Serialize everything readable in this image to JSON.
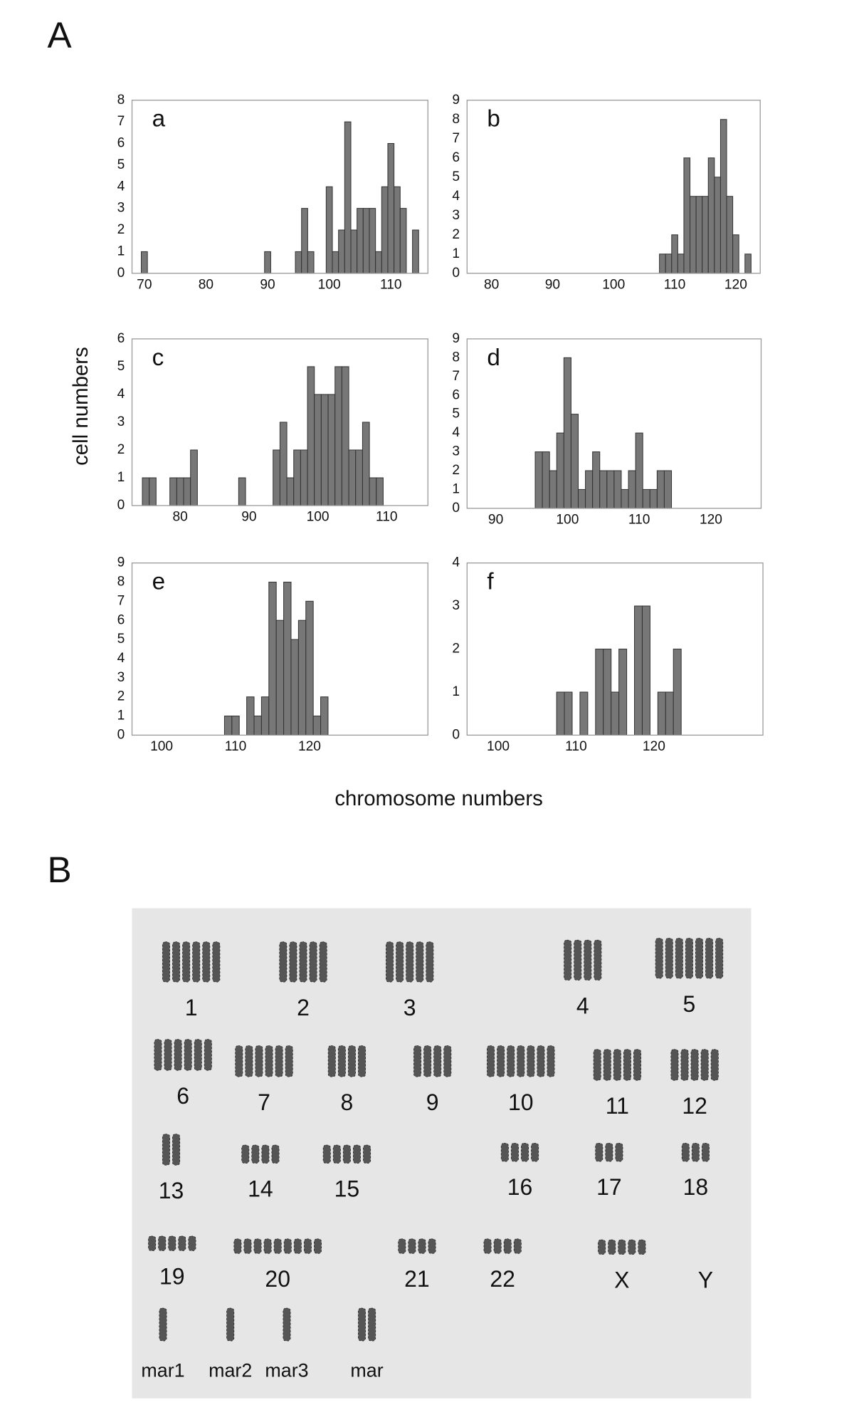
{
  "panel_labels": [
    "A",
    "B"
  ],
  "y_axis_label": "cell numbers",
  "x_axis_label": "chromosome numbers",
  "chart_data": [
    {
      "type": "bar",
      "label": "a",
      "x": [
        70,
        90,
        95,
        96,
        97,
        100,
        101,
        102,
        103,
        104,
        105,
        106,
        107,
        108,
        109,
        110,
        111,
        112,
        114
      ],
      "values": [
        1,
        1,
        1,
        3,
        1,
        4,
        1,
        2,
        7,
        2,
        3,
        3,
        3,
        1,
        4,
        6,
        4,
        3,
        2
      ],
      "color": "#777777",
      "xlim": [
        68,
        116
      ],
      "xticks": [
        70,
        80,
        90,
        100,
        110
      ],
      "ylim": [
        0,
        8
      ],
      "yticks": [
        0,
        1,
        2,
        3,
        4,
        5,
        6,
        7,
        8
      ]
    },
    {
      "type": "bar",
      "label": "b",
      "x": [
        108,
        109,
        110,
        111,
        112,
        113,
        114,
        115,
        116,
        117,
        118,
        119,
        120,
        122
      ],
      "values": [
        1,
        1,
        2,
        1,
        6,
        4,
        4,
        4,
        6,
        5,
        8,
        4,
        2,
        1
      ],
      "color": "#777777",
      "xlim": [
        76,
        124
      ],
      "xticks": [
        80,
        90,
        100,
        110,
        120
      ],
      "ylim": [
        0,
        9
      ],
      "yticks": [
        0,
        1,
        2,
        3,
        4,
        5,
        6,
        7,
        8,
        9
      ]
    },
    {
      "type": "bar",
      "label": "c",
      "x": [
        75,
        76,
        79,
        80,
        81,
        82,
        89,
        94,
        95,
        96,
        97,
        98,
        99,
        100,
        101,
        102,
        103,
        104,
        105,
        106,
        107,
        108,
        109
      ],
      "values": [
        1,
        1,
        1,
        1,
        1,
        2,
        1,
        2,
        3,
        1,
        2,
        2,
        5,
        4,
        4,
        4,
        5,
        5,
        2,
        2,
        3,
        1,
        1
      ],
      "color": "#777777",
      "xlim": [
        73,
        116
      ],
      "xticks": [
        80,
        90,
        100,
        110
      ],
      "ylim": [
        0,
        6
      ],
      "yticks": [
        0,
        1,
        2,
        3,
        4,
        5,
        6
      ]
    },
    {
      "type": "bar",
      "label": "d",
      "x": [
        96,
        97,
        98,
        99,
        100,
        101,
        102,
        103,
        104,
        105,
        106,
        107,
        108,
        109,
        110,
        111,
        112,
        113,
        114
      ],
      "values": [
        3,
        3,
        2,
        4,
        8,
        5,
        1,
        2,
        3,
        2,
        2,
        2,
        1,
        2,
        4,
        1,
        1,
        2,
        2
      ],
      "color": "#777777",
      "xlim": [
        86,
        127
      ],
      "xticks": [
        90,
        100,
        110,
        120
      ],
      "ylim": [
        0,
        9
      ],
      "yticks": [
        0,
        1,
        2,
        3,
        4,
        5,
        6,
        7,
        8,
        9
      ]
    },
    {
      "type": "bar",
      "label": "e",
      "x": [
        109,
        110,
        112,
        113,
        114,
        115,
        116,
        117,
        118,
        119,
        120,
        121,
        122
      ],
      "values": [
        1,
        1,
        2,
        1,
        2,
        8,
        6,
        8,
        5,
        6,
        7,
        1,
        2
      ],
      "color": "#777777",
      "xlim": [
        96,
        136
      ],
      "xticks": [
        100,
        110,
        120
      ],
      "ylim": [
        0,
        9
      ],
      "yticks": [
        0,
        1,
        2,
        3,
        4,
        5,
        6,
        7,
        8,
        9
      ]
    },
    {
      "type": "bar",
      "label": "f",
      "x": [
        108,
        109,
        111,
        113,
        114,
        115,
        116,
        118,
        119,
        121,
        122,
        123
      ],
      "values": [
        1,
        1,
        1,
        2,
        2,
        1,
        2,
        3,
        3,
        1,
        1,
        2
      ],
      "color": "#777777",
      "xlim": [
        96,
        134
      ],
      "xticks": [
        100,
        110,
        120
      ],
      "ylim": [
        0,
        4
      ],
      "yticks": [
        0,
        1,
        2,
        3,
        4
      ]
    }
  ],
  "karyotype": {
    "labels": [
      "1",
      "2",
      "3",
      "4",
      "5",
      "6",
      "7",
      "8",
      "9",
      "10",
      "11",
      "12",
      "13",
      "14",
      "15",
      "16",
      "17",
      "18",
      "19",
      "20",
      "21",
      "22",
      "X",
      "Y",
      "mar1",
      "mar2",
      "mar3",
      "mar"
    ]
  }
}
